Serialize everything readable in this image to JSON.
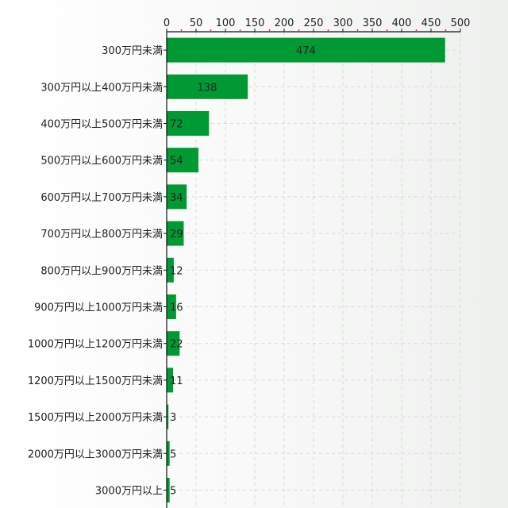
{
  "chart_data": {
    "type": "bar",
    "orientation": "horizontal",
    "categories": [
      "300万円未満",
      "300万円以上400万円未満",
      "400万円以上500万円未満",
      "500万円以上600万円未満",
      "600万円以上700万円未満",
      "700万円以上800万円未満",
      "800万円以上900万円未満",
      "900万円以上1000万円未満",
      "1000万円以上1200万円未満",
      "1200万円以上1500万円未満",
      "1500万円以上2000万円未満",
      "2000万円以上3000万円未満",
      "3000万円以上"
    ],
    "values": [
      474,
      138,
      72,
      54,
      34,
      29,
      12,
      16,
      22,
      11,
      3,
      5,
      5
    ],
    "x_ticks": [
      "0",
      "50",
      "100",
      "150",
      "200",
      "250",
      "300",
      "350",
      "400",
      "450",
      "500"
    ],
    "xlim": [
      0,
      500
    ],
    "x_axis_position": "top",
    "grid": true,
    "bar_color": "#009933",
    "title": "",
    "xlabel": "",
    "ylabel": ""
  }
}
